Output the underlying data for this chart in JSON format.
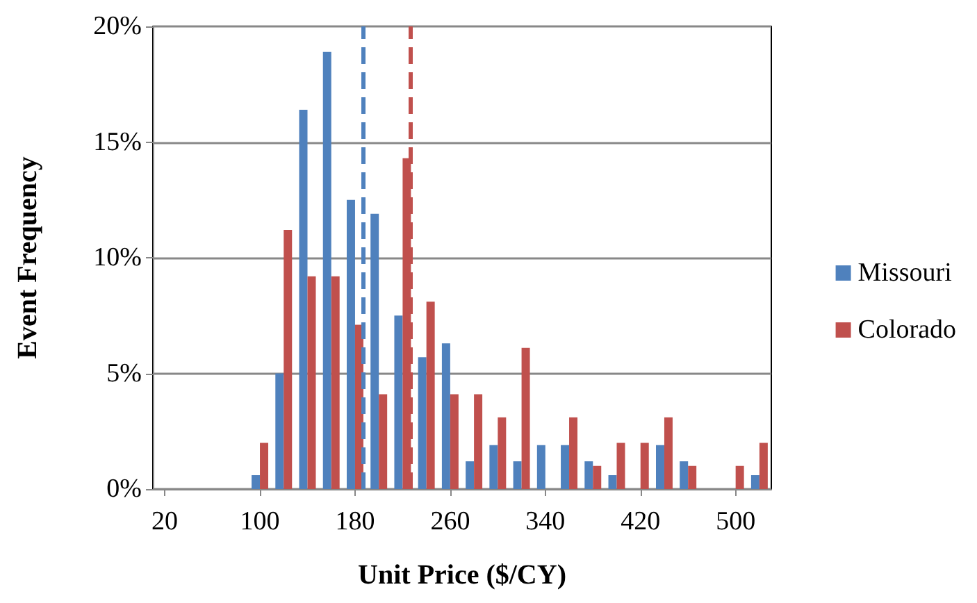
{
  "chart_data": {
    "type": "bar",
    "xlabel": "Unit Price ($/CY)",
    "ylabel": "Event Frequency",
    "x": [
      20,
      40,
      60,
      80,
      100,
      120,
      140,
      160,
      180,
      200,
      220,
      240,
      260,
      280,
      300,
      320,
      340,
      360,
      380,
      400,
      420,
      440,
      460,
      480,
      500,
      520
    ],
    "series": [
      {
        "name": "Missouri",
        "color": "#4f81bd",
        "values": [
          0,
          0,
          0,
          0,
          0.6,
          5.0,
          16.4,
          18.9,
          12.5,
          11.9,
          7.5,
          5.7,
          6.3,
          1.2,
          1.9,
          1.2,
          1.9,
          1.9,
          1.2,
          0.6,
          0,
          1.9,
          1.2,
          0,
          0,
          0.6
        ]
      },
      {
        "name": "Colorado",
        "color": "#c0504d",
        "values": [
          0,
          0,
          0,
          0,
          2.0,
          11.2,
          9.2,
          9.2,
          7.1,
          4.1,
          14.3,
          8.1,
          4.1,
          4.1,
          3.1,
          6.1,
          0,
          3.1,
          1.0,
          2.0,
          2.0,
          3.1,
          1.0,
          0,
          1.0,
          2.0
        ]
      }
    ],
    "xlim": [
      10,
      530
    ],
    "xticks": [
      20,
      100,
      180,
      260,
      340,
      420,
      500
    ],
    "ylim": [
      0,
      20
    ],
    "yticks": [
      {
        "value": 0,
        "label": "0%"
      },
      {
        "value": 5,
        "label": "5%"
      },
      {
        "value": 10,
        "label": "10%"
      },
      {
        "value": 15,
        "label": "15%"
      },
      {
        "value": 20,
        "label": "20%"
      }
    ],
    "ref_lines": [
      {
        "axis": "x",
        "value": 187,
        "color": "#4f81bd",
        "line_style": "dashed"
      },
      {
        "axis": "x",
        "value": 226,
        "color": "#c0504d",
        "line_style": "dashed"
      }
    ],
    "grid": "y",
    "legend": "right"
  }
}
